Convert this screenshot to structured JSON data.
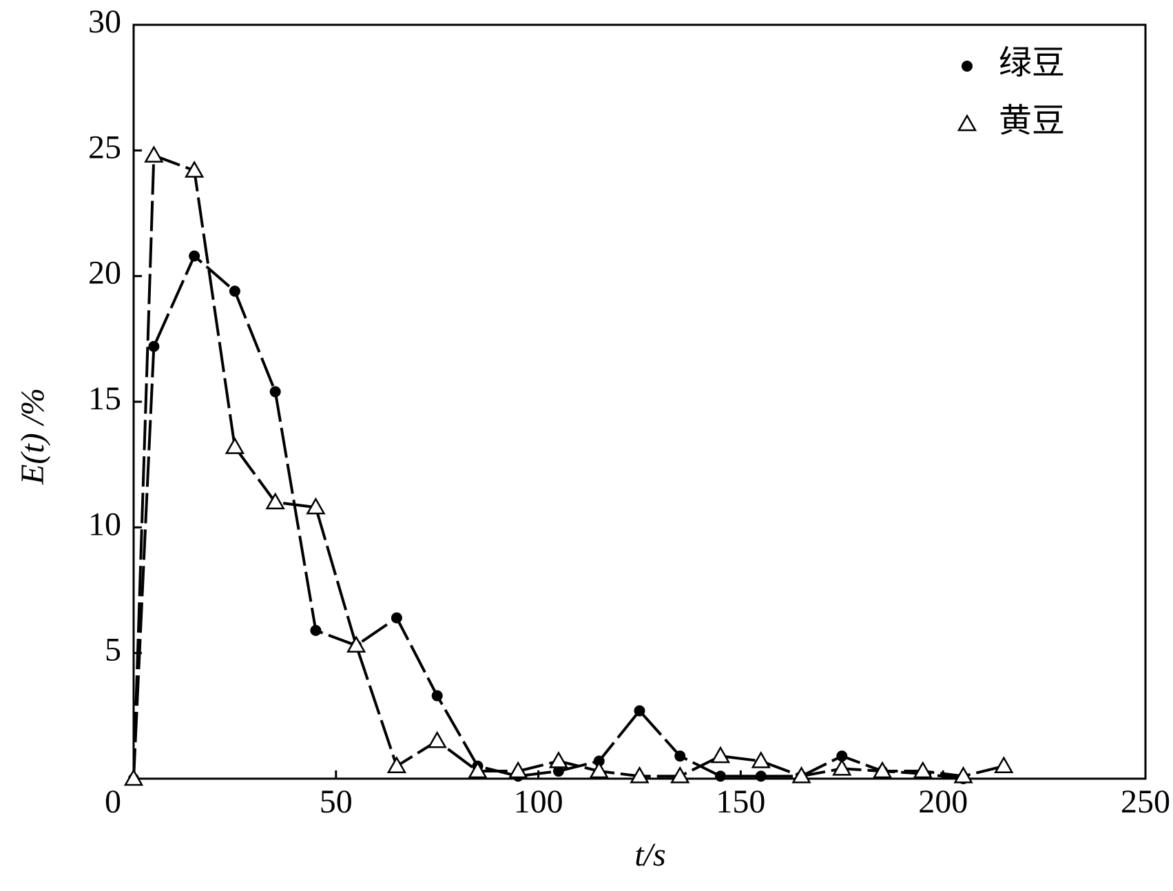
{
  "chart_data": {
    "type": "line",
    "x_label": "t/s",
    "y_label": "E(t) /%",
    "x": [
      0,
      5,
      15,
      25,
      35,
      45,
      55,
      65,
      75,
      85,
      95,
      105,
      115,
      125,
      135,
      145,
      155,
      165,
      175,
      185,
      195,
      205,
      215
    ],
    "series": [
      {
        "name": "绿豆",
        "color": "#000000",
        "marker": "circle",
        "values": [
          0,
          17.2,
          20.8,
          19.4,
          15.4,
          5.9,
          5.3,
          6.4,
          3.3,
          0.5,
          0.1,
          0.3,
          0.7,
          2.7,
          0.9,
          0.1,
          0.1,
          0.1,
          0.9,
          0.3,
          0.2,
          0,
          null
        ]
      },
      {
        "name": "黄豆",
        "color": "#000000",
        "marker": "triangle",
        "values": [
          0,
          24.8,
          24.2,
          13.2,
          11.0,
          10.8,
          5.3,
          0.5,
          1.5,
          0.3,
          0.3,
          0.7,
          0.3,
          0.1,
          0.1,
          0.9,
          0.7,
          0.1,
          0.4,
          0.3,
          0.3,
          0.1,
          0.5
        ]
      }
    ],
    "xlim": [
      0,
      250
    ],
    "xticks": [
      0,
      50,
      100,
      150,
      200,
      250
    ],
    "ylim": [
      0,
      30
    ],
    "yticks": [
      5,
      10,
      15,
      20,
      25,
      30
    ],
    "legend": "upper right"
  }
}
